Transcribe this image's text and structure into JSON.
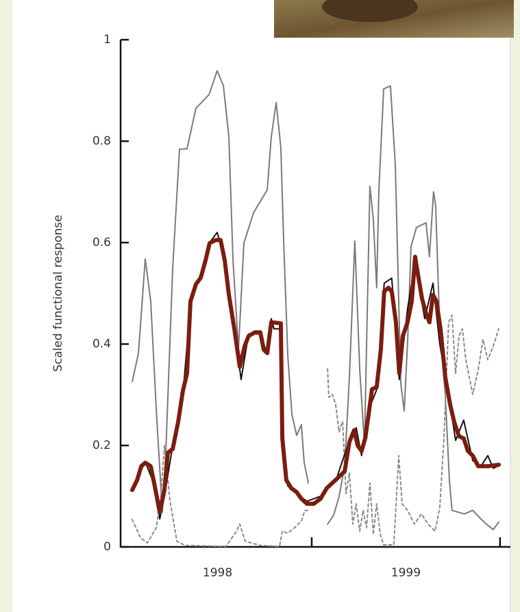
{
  "chart_data": {
    "type": "line",
    "ylabel": "Scaled functional response",
    "xlim": [
      1997.985,
      2000.055
    ],
    "ylim": [
      0,
      1
    ],
    "yticks": [
      0,
      0.2,
      0.4,
      0.6,
      0.8,
      1
    ],
    "xticks": [
      {
        "value": 1998.5,
        "label": "1998"
      },
      {
        "value": 1999.5,
        "label": "1999"
      }
    ],
    "xminorticks": [
      1999,
      2000
    ],
    "grid": false,
    "series": [
      {
        "color": "#7a7a7a",
        "style": "solid",
        "linewidth": 2,
        "x": [
          1998.047,
          1998.08,
          1998.116,
          1998.145,
          1998.175,
          1998.207,
          1998.225,
          1998.262,
          1998.298,
          1998.338,
          1998.385,
          1998.455,
          1998.498,
          1998.531,
          1998.56,
          1998.582,
          1998.611,
          1998.64,
          1998.691,
          1998.764,
          1998.785,
          1998.811,
          1998.836,
          1998.851,
          1998.873,
          1998.895,
          1998.92,
          1998.945,
          1998.96,
          1998.982,
          1999.03,
          1999.084,
          1999.116,
          1999.145,
          1999.175,
          1999.2,
          1999.229,
          1999.255,
          1999.28,
          1999.309,
          1999.327,
          1999.345,
          1999.356,
          1999.382,
          1999.418,
          1999.444,
          1999.473,
          1999.491,
          1999.509,
          1999.527,
          1999.556,
          1999.607,
          1999.625,
          1999.647,
          1999.658,
          1999.68,
          1999.709,
          1999.731,
          1999.745,
          1999.811,
          1999.855,
          1999.891,
          1999.927,
          1999.964,
          1999.993
        ],
        "values": [
          0.326,
          0.382,
          0.568,
          0.484,
          0.268,
          0.068,
          0.186,
          0.551,
          0.784,
          0.785,
          0.865,
          0.892,
          0.939,
          0.909,
          0.808,
          0.565,
          0.389,
          0.599,
          0.659,
          0.704,
          0.808,
          0.876,
          0.788,
          0.605,
          0.376,
          0.261,
          0.22,
          0.241,
          0.166,
          0.126,
          null,
          0.045,
          0.062,
          0.099,
          0.159,
          0.335,
          0.603,
          0.349,
          0.2,
          0.711,
          0.646,
          0.511,
          0.7,
          0.903,
          0.909,
          0.754,
          0.322,
          0.268,
          0.403,
          0.592,
          0.63,
          0.639,
          0.572,
          0.7,
          0.673,
          0.43,
          0.301,
          0.132,
          0.072,
          0.065,
          0.072,
          0.058,
          0.045,
          0.034,
          0.049
        ]
      },
      {
        "color": "#8a8a8a",
        "style": "dotted",
        "linewidth": 2,
        "x": [
          1998.047,
          1998.091,
          1998.127,
          1998.175,
          1998.2,
          1998.218,
          1998.247,
          1998.284,
          1998.327,
          1998.545,
          1998.6,
          1998.618,
          1998.647,
          1998.727,
          1998.829,
          1998.844,
          1998.873,
          1998.909,
          1998.945,
          1998.964,
          1998.989,
          1999.04,
          1999.084,
          1999.091,
          1999.109,
          1999.127,
          1999.145,
          1999.164,
          1999.182,
          1999.2,
          1999.218,
          1999.236,
          1999.255,
          1999.273,
          1999.291,
          1999.309,
          1999.327,
          1999.345,
          1999.364,
          1999.382,
          1999.436,
          1999.462,
          1999.48,
          1999.509,
          1999.545,
          1999.582,
          1999.618,
          1999.655,
          1999.68,
          1999.702,
          1999.727,
          1999.745,
          1999.764,
          1999.782,
          1999.8,
          1999.818,
          1999.855,
          1999.884,
          1999.909,
          1999.935,
          1999.964,
          1999.993
        ],
        "values": [
          0.054,
          0.018,
          0.008,
          0.038,
          0.105,
          0.2,
          0.092,
          0.011,
          0.003,
          0.001,
          0.031,
          0.045,
          0.011,
          0.003,
          0.001,
          0.031,
          0.027,
          0.038,
          0.051,
          0.072,
          0.072,
          null,
          0.351,
          0.295,
          0.301,
          0.281,
          0.227,
          0.247,
          0.105,
          0.146,
          0.045,
          0.085,
          0.031,
          0.072,
          0.038,
          0.126,
          0.024,
          0.085,
          0.024,
          0.004,
          0.004,
          0.18,
          0.085,
          0.072,
          0.045,
          0.065,
          0.045,
          0.031,
          0.078,
          0.214,
          0.443,
          0.457,
          0.342,
          0.416,
          0.43,
          0.369,
          0.301,
          0.349,
          0.409,
          0.369,
          0.396,
          0.43
        ]
      },
      {
        "color": "#111111",
        "style": "solid",
        "linewidth": 2,
        "x": [
          1998.047,
          1998.116,
          1998.167,
          1998.193,
          1998.218,
          1998.262,
          1998.316,
          1998.356,
          1998.411,
          1998.458,
          1998.498,
          1998.538,
          1998.589,
          1998.611,
          1998.625,
          1998.665,
          1998.727,
          1998.764,
          1998.785,
          1998.8,
          1998.836,
          1998.851,
          1998.873,
          1998.92,
          1998.975,
          1999.047,
          1999.127,
          1999.2,
          1999.236,
          1999.265,
          1999.302,
          1999.345,
          1999.385,
          1999.425,
          1999.465,
          1999.509,
          1999.549,
          1999.6,
          1999.644,
          1999.68,
          1999.735,
          1999.764,
          1999.807,
          1999.855,
          1999.9,
          1999.935,
          1999.964,
          1999.993
        ],
        "values": [
          0.115,
          0.168,
          0.12,
          0.055,
          0.1,
          0.2,
          0.3,
          0.48,
          0.54,
          0.6,
          0.62,
          0.57,
          0.42,
          0.37,
          0.33,
          0.42,
          0.42,
          0.38,
          0.45,
          0.43,
          0.43,
          0.2,
          0.12,
          0.105,
          0.09,
          0.1,
          0.13,
          0.21,
          0.235,
          0.18,
          0.27,
          0.31,
          0.52,
          0.53,
          0.33,
          0.47,
          0.56,
          0.45,
          0.52,
          0.4,
          0.28,
          0.21,
          0.25,
          0.17,
          0.16,
          0.18,
          0.155,
          0.16
        ]
      },
      {
        "color": "#7b1d0e",
        "style": "solid",
        "linewidth": 6,
        "x": [
          1998.047,
          1998.073,
          1998.095,
          1998.116,
          1998.145,
          1998.167,
          1998.193,
          1998.218,
          1998.236,
          1998.262,
          1998.291,
          1998.316,
          1998.338,
          1998.356,
          1998.385,
          1998.411,
          1998.436,
          1998.458,
          1998.491,
          1998.516,
          1998.538,
          1998.56,
          1998.589,
          1998.618,
          1998.644,
          1998.665,
          1998.698,
          1998.727,
          1998.745,
          1998.764,
          1998.785,
          1998.836,
          1998.844,
          1998.865,
          1998.891,
          1998.92,
          1998.945,
          1998.975,
          1999.011,
          1999.047,
          1999.08,
          1999.127,
          1999.175,
          1999.2,
          1999.225,
          1999.244,
          1999.265,
          1999.284,
          1999.302,
          1999.32,
          1999.345,
          1999.367,
          1999.385,
          1999.407,
          1999.425,
          1999.447,
          1999.465,
          1999.484,
          1999.509,
          1999.531,
          1999.549,
          1999.564,
          1999.585,
          1999.604,
          1999.625,
          1999.644,
          1999.662,
          1999.684,
          1999.709,
          1999.735,
          1999.756,
          1999.782,
          1999.807,
          1999.829,
          1999.855,
          1999.884,
          1999.935,
          1999.993
        ],
        "values": [
          0.112,
          0.132,
          0.159,
          0.166,
          0.159,
          0.119,
          0.068,
          0.112,
          0.186,
          0.193,
          0.247,
          0.308,
          0.342,
          0.484,
          0.518,
          0.531,
          0.565,
          0.599,
          0.605,
          0.605,
          0.565,
          0.497,
          0.43,
          0.355,
          0.396,
          0.416,
          0.423,
          0.423,
          0.389,
          0.382,
          0.443,
          0.441,
          0.214,
          0.132,
          0.116,
          0.108,
          0.095,
          0.085,
          0.085,
          0.095,
          0.116,
          0.132,
          0.149,
          0.207,
          0.23,
          0.2,
          0.189,
          0.214,
          0.261,
          0.311,
          0.315,
          0.389,
          0.504,
          0.511,
          0.504,
          0.443,
          0.342,
          0.416,
          0.443,
          0.484,
          0.572,
          0.538,
          0.491,
          0.464,
          0.443,
          0.497,
          0.484,
          0.43,
          0.335,
          0.281,
          0.247,
          0.218,
          0.214,
          0.189,
          0.18,
          0.159,
          0.159,
          0.162
        ]
      }
    ]
  }
}
